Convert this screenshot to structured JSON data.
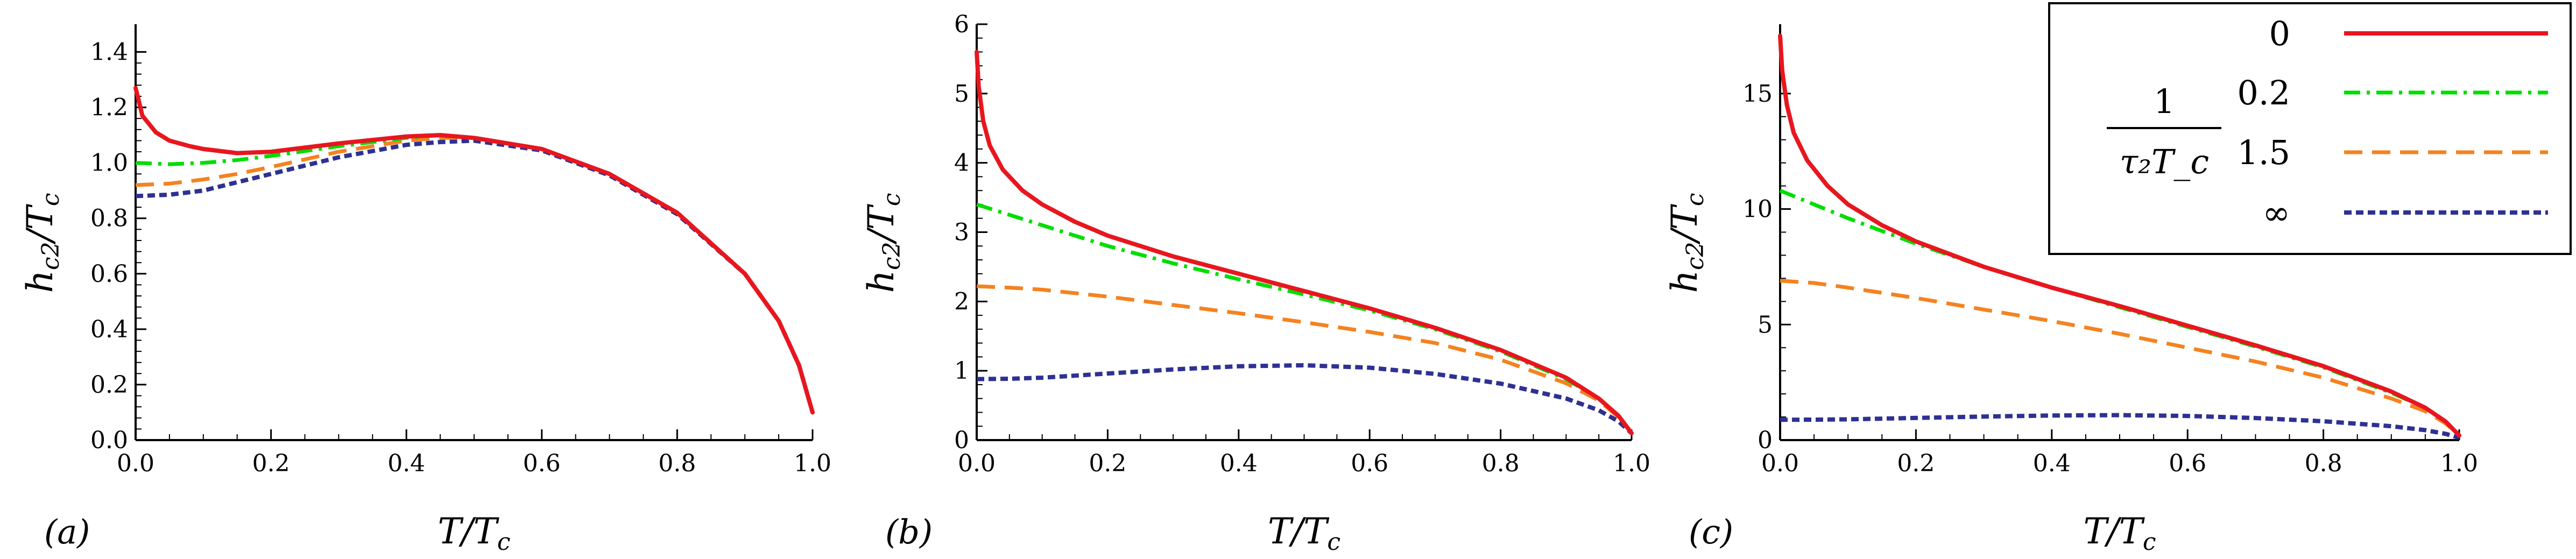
{
  "chart_data": [
    {
      "type": "line",
      "panel_label": "(a)",
      "xlabel": "T/T_c",
      "ylabel": "h_c2/T_c",
      "xlim": [
        0,
        1
      ],
      "ylim": [
        0,
        1.5
      ],
      "xticks": [
        "0.0",
        "0.2",
        "0.4",
        "0.6",
        "0.8",
        "1.0"
      ],
      "yticks": [
        "0.0",
        "0.2",
        "0.4",
        "0.6",
        "0.8",
        "1.0",
        "1.2",
        "1.4"
      ],
      "series": [
        {
          "name": "0",
          "x": [
            0,
            0.01,
            0.03,
            0.05,
            0.08,
            0.1,
            0.15,
            0.2,
            0.3,
            0.4,
            0.45,
            0.5,
            0.6,
            0.7,
            0.8,
            0.9,
            0.95,
            0.98,
            1.0
          ],
          "y": [
            1.27,
            1.17,
            1.11,
            1.08,
            1.06,
            1.05,
            1.035,
            1.04,
            1.07,
            1.095,
            1.1,
            1.09,
            1.05,
            0.96,
            0.82,
            0.6,
            0.43,
            0.27,
            0.1
          ]
        },
        {
          "name": "0.2",
          "x": [
            0,
            0.05,
            0.1,
            0.15,
            0.2,
            0.3,
            0.4,
            0.45,
            0.5,
            0.6,
            0.7,
            0.8,
            0.9,
            0.95,
            0.98,
            1.0
          ],
          "y": [
            1.0,
            0.995,
            1.0,
            1.01,
            1.025,
            1.06,
            1.09,
            1.1,
            1.09,
            1.05,
            0.96,
            0.82,
            0.6,
            0.43,
            0.27,
            0.1
          ]
        },
        {
          "name": "1.5",
          "x": [
            0,
            0.05,
            0.1,
            0.15,
            0.2,
            0.3,
            0.4,
            0.45,
            0.5,
            0.6,
            0.7,
            0.8,
            0.9,
            0.95,
            0.98,
            1.0
          ],
          "y": [
            0.92,
            0.925,
            0.94,
            0.96,
            0.985,
            1.04,
            1.08,
            1.09,
            1.09,
            1.05,
            0.96,
            0.82,
            0.6,
            0.43,
            0.27,
            0.1
          ]
        },
        {
          "name": "∞",
          "x": [
            0,
            0.05,
            0.1,
            0.15,
            0.2,
            0.3,
            0.4,
            0.45,
            0.5,
            0.6,
            0.7,
            0.8,
            0.9,
            0.95,
            0.98,
            1.0
          ],
          "y": [
            0.88,
            0.885,
            0.9,
            0.93,
            0.96,
            1.02,
            1.065,
            1.075,
            1.08,
            1.045,
            0.955,
            0.815,
            0.6,
            0.43,
            0.27,
            0.1
          ]
        }
      ]
    },
    {
      "type": "line",
      "panel_label": "(b)",
      "xlabel": "T/T_c",
      "ylabel": "h_c2/T_c",
      "xlim": [
        0,
        1
      ],
      "ylim": [
        0,
        6
      ],
      "xticks": [
        "0.0",
        "0.2",
        "0.4",
        "0.6",
        "0.8",
        "1.0"
      ],
      "yticks": [
        "0",
        "1",
        "2",
        "3",
        "4",
        "5",
        "6"
      ],
      "series": [
        {
          "name": "0",
          "x": [
            0,
            0.003,
            0.01,
            0.02,
            0.04,
            0.07,
            0.1,
            0.15,
            0.2,
            0.3,
            0.4,
            0.5,
            0.6,
            0.7,
            0.8,
            0.9,
            0.95,
            0.98,
            1.0
          ],
          "y": [
            5.6,
            5.1,
            4.6,
            4.25,
            3.9,
            3.6,
            3.4,
            3.15,
            2.95,
            2.65,
            2.4,
            2.15,
            1.9,
            1.62,
            1.3,
            0.9,
            0.6,
            0.35,
            0.1
          ]
        },
        {
          "name": "0.2",
          "x": [
            0,
            0.05,
            0.1,
            0.2,
            0.3,
            0.4,
            0.5,
            0.6,
            0.7,
            0.8,
            0.9,
            0.95,
            0.98,
            1.0
          ],
          "y": [
            3.4,
            3.25,
            3.1,
            2.8,
            2.55,
            2.32,
            2.1,
            1.87,
            1.6,
            1.28,
            0.88,
            0.6,
            0.35,
            0.1
          ]
        },
        {
          "name": "1.5",
          "x": [
            0,
            0.05,
            0.1,
            0.2,
            0.3,
            0.4,
            0.5,
            0.6,
            0.7,
            0.8,
            0.9,
            0.95,
            0.98,
            1.0
          ],
          "y": [
            2.22,
            2.2,
            2.17,
            2.07,
            1.95,
            1.83,
            1.7,
            1.56,
            1.4,
            1.16,
            0.82,
            0.57,
            0.33,
            0.1
          ]
        },
        {
          "name": "∞",
          "x": [
            0,
            0.05,
            0.1,
            0.2,
            0.3,
            0.4,
            0.5,
            0.6,
            0.7,
            0.8,
            0.9,
            0.95,
            0.98,
            1.0
          ],
          "y": [
            0.88,
            0.885,
            0.9,
            0.96,
            1.02,
            1.065,
            1.08,
            1.045,
            0.955,
            0.815,
            0.6,
            0.43,
            0.27,
            0.1
          ]
        }
      ]
    },
    {
      "type": "line",
      "panel_label": "(c)",
      "xlabel": "T/T_c",
      "ylabel": "h_c2/T_c",
      "xlim": [
        0,
        1
      ],
      "ylim": [
        0,
        18
      ],
      "xticks": [
        "0.0",
        "0.2",
        "0.4",
        "0.6",
        "0.8",
        "1.0"
      ],
      "yticks": [
        "0",
        "5",
        "10",
        "15"
      ],
      "series": [
        {
          "name": "0",
          "x": [
            0,
            0.003,
            0.01,
            0.02,
            0.04,
            0.07,
            0.1,
            0.15,
            0.2,
            0.3,
            0.4,
            0.5,
            0.6,
            0.7,
            0.8,
            0.9,
            0.95,
            0.98,
            1.0
          ],
          "y": [
            17.5,
            16,
            14.5,
            13.3,
            12.1,
            11,
            10.2,
            9.3,
            8.6,
            7.5,
            6.6,
            5.8,
            4.95,
            4.1,
            3.2,
            2.1,
            1.4,
            0.8,
            0.2
          ]
        },
        {
          "name": "0.2",
          "x": [
            0,
            0.05,
            0.1,
            0.2,
            0.3,
            0.4,
            0.5,
            0.6,
            0.7,
            0.8,
            0.9,
            0.95,
            0.98,
            1.0
          ],
          "y": [
            10.8,
            10.2,
            9.6,
            8.5,
            7.5,
            6.6,
            5.75,
            4.9,
            4.05,
            3.15,
            2.05,
            1.4,
            0.8,
            0.2
          ]
        },
        {
          "name": "1.5",
          "x": [
            0,
            0.05,
            0.1,
            0.2,
            0.3,
            0.4,
            0.5,
            0.6,
            0.7,
            0.8,
            0.9,
            0.95,
            0.98,
            1.0
          ],
          "y": [
            6.9,
            6.8,
            6.6,
            6.15,
            5.65,
            5.15,
            4.6,
            4.0,
            3.4,
            2.7,
            1.8,
            1.25,
            0.72,
            0.2
          ]
        },
        {
          "name": "∞",
          "x": [
            0,
            0.05,
            0.1,
            0.2,
            0.3,
            0.4,
            0.5,
            0.6,
            0.7,
            0.8,
            0.9,
            0.95,
            0.98,
            1.0
          ],
          "y": [
            0.88,
            0.885,
            0.9,
            0.96,
            1.02,
            1.065,
            1.08,
            1.045,
            0.955,
            0.815,
            0.6,
            0.43,
            0.27,
            0.1
          ]
        }
      ]
    }
  ],
  "legend": {
    "title_numerator": "1",
    "title_denominator": "τ₂T_c",
    "entries": [
      {
        "label": "0",
        "color": "#e8161e",
        "style": "solid"
      },
      {
        "label": "0.2",
        "color": "#00dd00",
        "style": "dashdot"
      },
      {
        "label": "1.5",
        "color": "#f58220",
        "style": "dashed"
      },
      {
        "label": "∞",
        "color": "#2e3192",
        "style": "dotted"
      }
    ]
  }
}
